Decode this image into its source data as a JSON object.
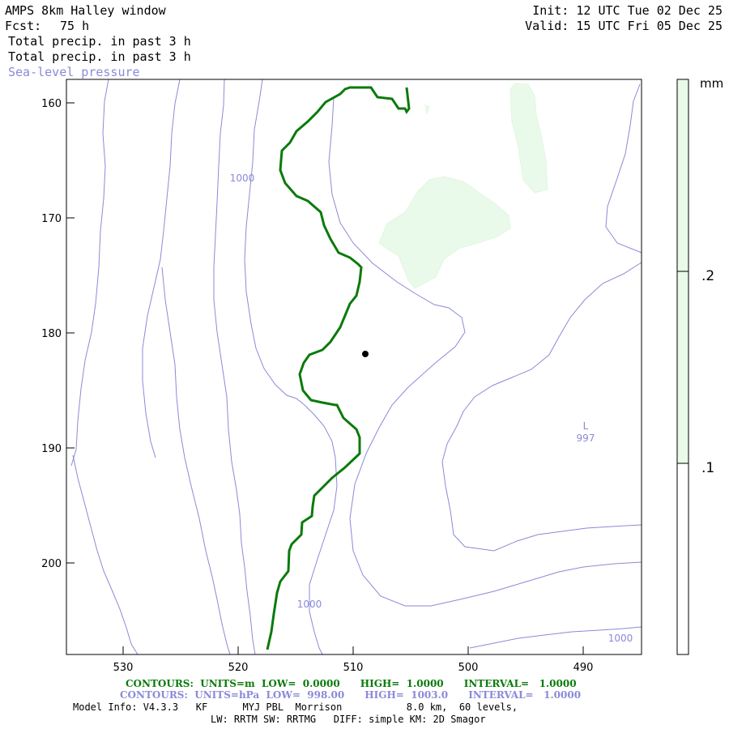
{
  "header": {
    "title": "AMPS 8km Halley window",
    "forecast_label": "Fcst:",
    "forecast_hours": "75 h",
    "init": "Init: 12 UTC Tue 02 Dec 25",
    "valid": "Valid: 15 UTC Fri 05 Dec 25",
    "field1": "Total precip. in past 3 h",
    "field2": "Total precip. in past 3 h",
    "field3": "Sea-level pressure"
  },
  "axes": {
    "y_ticks": [
      "160",
      "170",
      "180",
      "190",
      "200"
    ],
    "x_ticks": [
      "530",
      "520",
      "510",
      "500",
      "490"
    ]
  },
  "colorbar": {
    "unit": "mm",
    "levels": [
      ".2",
      ".1"
    ],
    "fill_color": "#eafaea"
  },
  "contour_labels": [
    {
      "text": "1000"
    },
    {
      "text": "1000"
    },
    {
      "text": "1000"
    },
    {
      "text": "L"
    },
    {
      "text": "997"
    }
  ],
  "colors": {
    "pressure": "#8a8ad8",
    "coast": "#0a7a0a",
    "precip": "#eafaea"
  },
  "footer": {
    "line1": "CONTOURS:  UNITS=m  LOW=  0.0000      HIGH=  1.0000      INTERVAL=   1.0000",
    "line2": "CONTOURS:  UNITS=hPa  LOW=  998.00      HIGH=  1003.0      INTERVAL=   1.0000",
    "line3": "Model Info: V4.3.3   KF      MYJ PBL  Morrison           8.0 km,  60 levels,",
    "line4": "LW: RRTM SW: RRTMG   DIFF: simple KM: 2D Smagor"
  }
}
